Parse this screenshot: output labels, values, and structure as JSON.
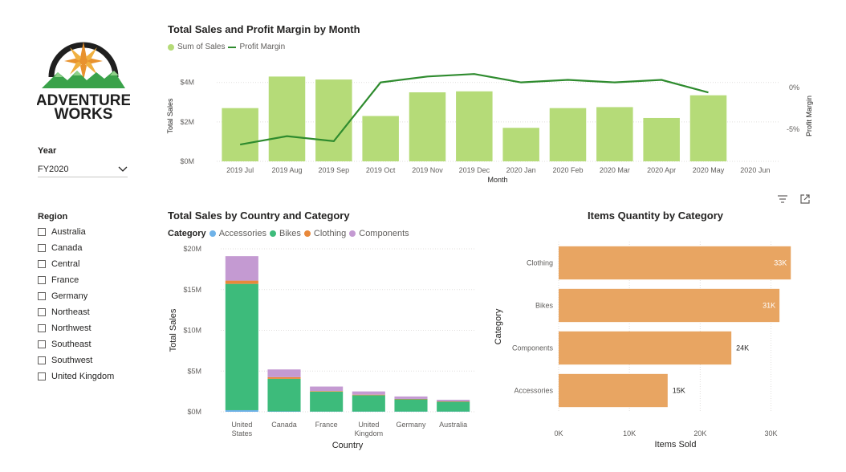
{
  "logo": {
    "line1": "ADVENTURE",
    "line2": "WORKS",
    "sun_color": "#e8922e",
    "mountain_color": "#3aa24a"
  },
  "year_slicer": {
    "title": "Year",
    "selected": "FY2020"
  },
  "region_slicer": {
    "title": "Region",
    "items": [
      "Australia",
      "Canada",
      "Central",
      "France",
      "Germany",
      "Northeast",
      "Northwest",
      "Southeast",
      "Southwest",
      "United Kingdom"
    ]
  },
  "visual_header": {
    "filter_icon": "filter-icon",
    "focus_icon": "focus-mode-icon"
  },
  "charts": [
    {
      "id": "monthly",
      "type": "bar",
      "title": "Total Sales and Profit Margin by Month",
      "legend": [
        {
          "label": "Sum of Sales",
          "color": "#b5db78"
        },
        {
          "label": "Profit Margin",
          "color": "#2e8b2e"
        }
      ],
      "xlabel": "Month",
      "ylabel": "Total Sales",
      "y2label": "Profit Margin",
      "categories": [
        "2019 Jul",
        "2019 Aug",
        "2019 Sep",
        "2019 Oct",
        "2019 Nov",
        "2019 Dec",
        "2020 Jan",
        "2020 Feb",
        "2020 Mar",
        "2020 Apr",
        "2020 May",
        "2020 Jun"
      ],
      "series": [
        {
          "name": "Sum of Sales",
          "axis": "left",
          "values": [
            2.7,
            4.3,
            4.15,
            2.3,
            3.5,
            3.55,
            1.7,
            2.7,
            2.75,
            2.2,
            3.35,
            null
          ],
          "color": "#b5db78"
        },
        {
          "name": "Profit Margin",
          "axis": "right",
          "values": [
            -6.8,
            -5.8,
            -6.4,
            0.6,
            1.3,
            1.6,
            0.6,
            0.9,
            0.6,
            0.9,
            -0.6,
            null
          ],
          "color": "#2e8b2e"
        }
      ],
      "ylim": [
        0,
        4.6
      ],
      "yticks": [
        {
          "v": 0,
          "label": "$0M"
        },
        {
          "v": 2,
          "label": "$2M"
        },
        {
          "v": 4,
          "label": "$4M"
        }
      ],
      "y2lim": [
        -8.8,
        2.0
      ],
      "y2ticks": [
        {
          "v": 0,
          "label": "0%"
        },
        {
          "v": -5,
          "label": "-5%"
        }
      ]
    },
    {
      "id": "country",
      "type": "bar",
      "title": "Total Sales by Country and Category",
      "legend_title": "Category",
      "legend": [
        {
          "label": "Accessories",
          "color": "#6fb2e8"
        },
        {
          "label": "Bikes",
          "color": "#3dbb7b"
        },
        {
          "label": "Clothing",
          "color": "#e8883a"
        },
        {
          "label": "Components",
          "color": "#c49ad2"
        }
      ],
      "xlabel": "Country",
      "ylabel": "Total Sales",
      "categories": [
        "United States",
        "Canada",
        "France",
        "United Kingdom",
        "Germany",
        "Australia"
      ],
      "category_lines": [
        [
          "United",
          "States"
        ],
        [
          "Canada"
        ],
        [
          "France"
        ],
        [
          "United",
          "Kingdom"
        ],
        [
          "Germany"
        ],
        [
          "Australia"
        ]
      ],
      "series": [
        {
          "name": "Accessories",
          "values": [
            0.2,
            0.05,
            0.03,
            0.03,
            0.03,
            0.03
          ]
        },
        {
          "name": "Bikes",
          "values": [
            15.5,
            4.0,
            2.45,
            2.0,
            1.5,
            1.2
          ]
        },
        {
          "name": "Clothing",
          "values": [
            0.4,
            0.2,
            0.07,
            0.07,
            0.05,
            0.05
          ]
        },
        {
          "name": "Components",
          "values": [
            3.0,
            0.95,
            0.55,
            0.4,
            0.3,
            0.2
          ]
        }
      ],
      "ylim": [
        0,
        20
      ],
      "yticks": [
        {
          "v": 0,
          "label": "$0M"
        },
        {
          "v": 5,
          "label": "$5M"
        },
        {
          "v": 10,
          "label": "$10M"
        },
        {
          "v": 15,
          "label": "$15M"
        },
        {
          "v": 20,
          "label": "$20M"
        }
      ]
    },
    {
      "id": "quantity",
      "type": "bar",
      "orientation": "horizontal",
      "title": "Items Quantity by Category",
      "xlabel": "Items Sold",
      "ylabel": "Category",
      "categories": [
        "Clothing",
        "Bikes",
        "Components",
        "Accessories"
      ],
      "values": [
        32800,
        31200,
        24400,
        15400
      ],
      "value_labels": [
        "33K",
        "31K",
        "24K",
        "15K"
      ],
      "color": "#e8a562",
      "xlim": [
        0,
        33000
      ],
      "xticks": [
        {
          "v": 0,
          "label": "0K"
        },
        {
          "v": 10000,
          "label": "10K"
        },
        {
          "v": 20000,
          "label": "20K"
        },
        {
          "v": 30000,
          "label": "30K"
        }
      ]
    }
  ]
}
